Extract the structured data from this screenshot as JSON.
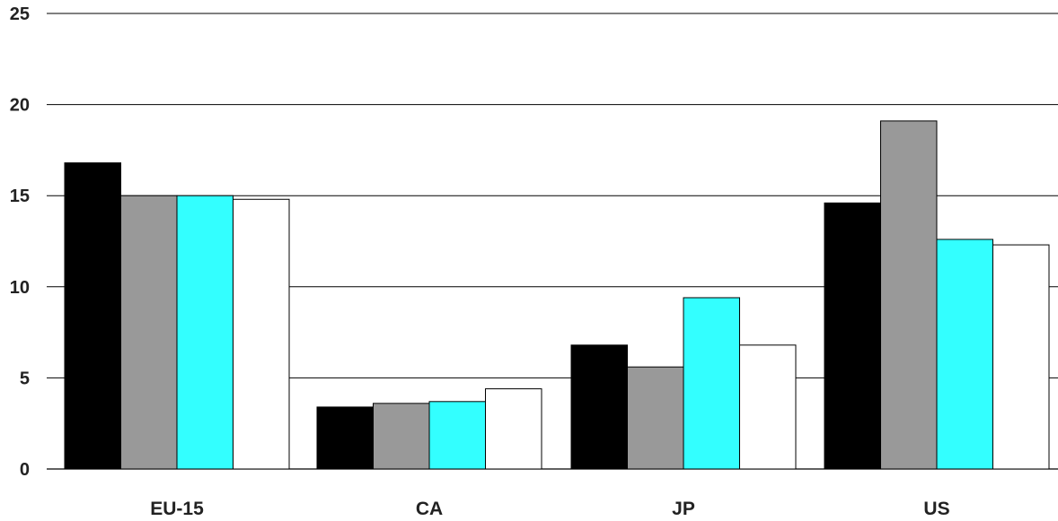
{
  "chart_data": {
    "type": "bar",
    "title": "",
    "xlabel": "",
    "ylabel": "",
    "ylim": [
      0,
      25
    ],
    "yticks": [
      0,
      5,
      10,
      15,
      20,
      25
    ],
    "grid": "horizontal",
    "legend": "none",
    "categories": [
      "EU-15",
      "CA",
      "JP",
      "US"
    ],
    "series": [
      {
        "color": "#000000",
        "values": [
          16.8,
          3.4,
          6.8,
          14.6
        ]
      },
      {
        "color": "#999999",
        "values": [
          15.0,
          3.6,
          5.6,
          19.1
        ]
      },
      {
        "color": "#33ffff",
        "values": [
          15.0,
          3.7,
          9.4,
          12.6
        ]
      },
      {
        "color": "#ffffff",
        "values": [
          14.8,
          4.4,
          6.8,
          12.3
        ]
      }
    ]
  }
}
